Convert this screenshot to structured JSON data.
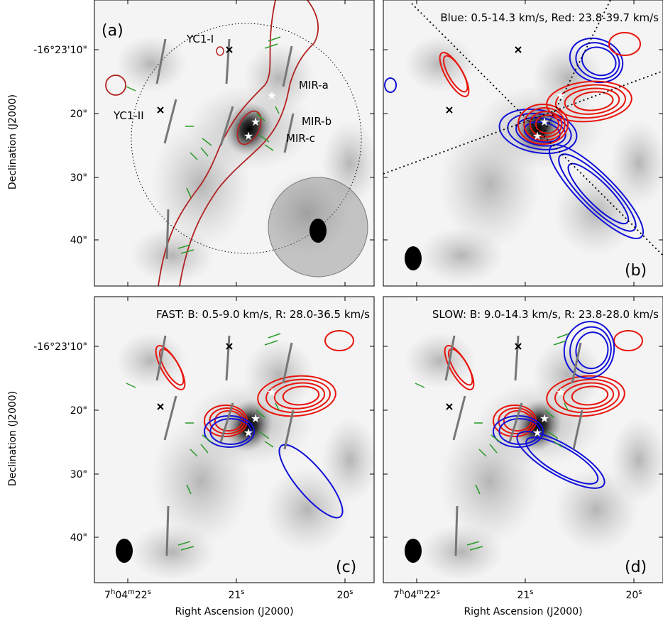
{
  "panels": [
    {
      "label": "(a)",
      "annotations": [
        "YC1-I",
        "YC1-II",
        "MIR-a",
        "MIR-b",
        "MIR-c"
      ]
    },
    {
      "label": "(b)",
      "title": "Blue: 0.5-14.3 km/s, Red: 23.8-39.7 km/s"
    },
    {
      "label": "(c)",
      "title": "FAST: B: 0.5-9.0 km/s, R: 28.0-36.5 km/s"
    },
    {
      "label": "(d)",
      "title": "SLOW: B: 9.0-14.3 km/s, R: 23.8-28.0 km/s"
    }
  ],
  "y_axis": {
    "label": "Declination (J2000)",
    "ticks": [
      "-16°23'10\"",
      "20\"",
      "30\"",
      "40\""
    ]
  },
  "x_axis": {
    "label": "Right Ascension (J2000)",
    "ticks": [
      [
        "7",
        "h",
        "04",
        "m",
        "22",
        "s"
      ],
      [
        "21",
        "s"
      ],
      [
        "20",
        "s"
      ]
    ]
  }
}
